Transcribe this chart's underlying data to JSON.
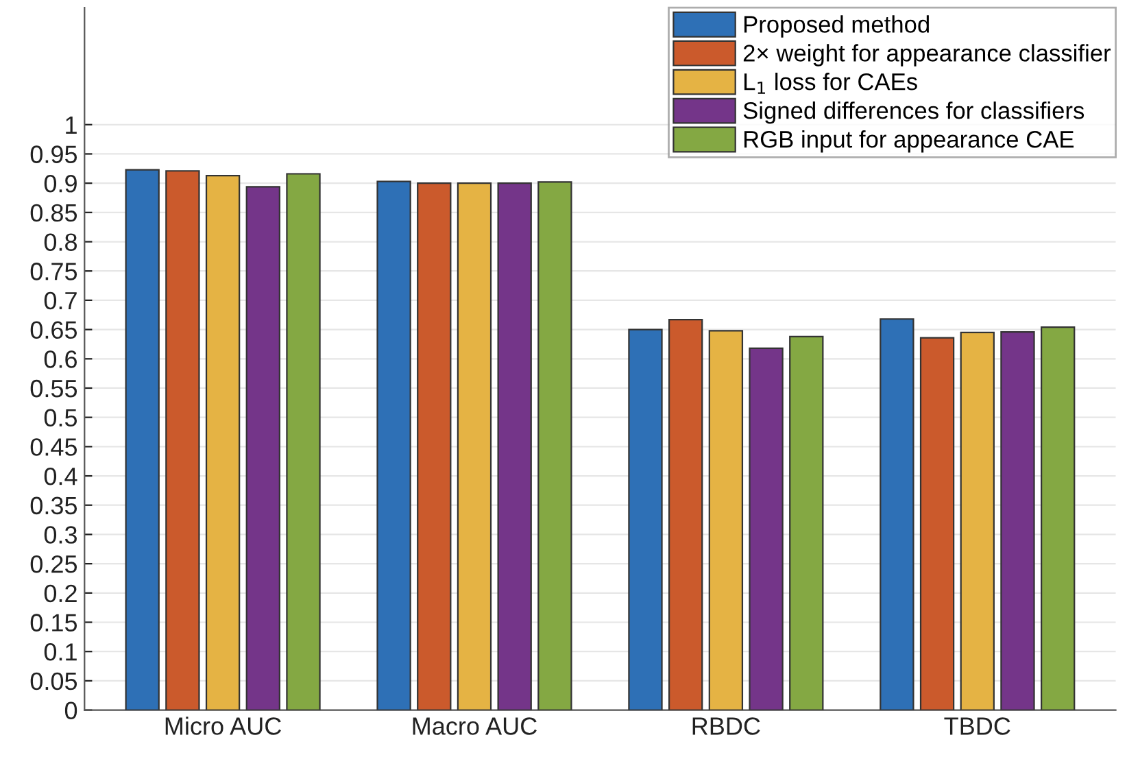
{
  "chart_data": {
    "type": "bar",
    "categories": [
      "Micro AUC",
      "Macro AUC",
      "RBDC",
      "TBDC"
    ],
    "series": [
      {
        "name": "Proposed method",
        "color": "#2e70b6",
        "values": [
          0.923,
          0.903,
          0.65,
          0.668
        ]
      },
      {
        "name": "2× weight for appearance classifier",
        "color": "#cb5a2c",
        "values": [
          0.921,
          0.9,
          0.667,
          0.636
        ]
      },
      {
        "name": "L$_{1}$ loss for CAEs",
        "color": "#e5b344",
        "values": [
          0.913,
          0.9,
          0.648,
          0.645
        ]
      },
      {
        "name": "Signed differences for classifiers",
        "color": "#743589",
        "values": [
          0.894,
          0.9,
          0.618,
          0.646
        ]
      },
      {
        "name": "RGB input for appearance CAE",
        "color": "#84a843",
        "values": [
          0.916,
          0.902,
          0.638,
          0.654
        ]
      }
    ],
    "ylim": [
      0,
      1.2
    ],
    "yticks": [
      0,
      0.05,
      0.1,
      0.15,
      0.2,
      0.25,
      0.3,
      0.35,
      0.4,
      0.45,
      0.5,
      0.55,
      0.6,
      0.65,
      0.7,
      0.75,
      0.8,
      0.85,
      0.9,
      0.95,
      1
    ],
    "grid": "y",
    "legend": "top right"
  }
}
